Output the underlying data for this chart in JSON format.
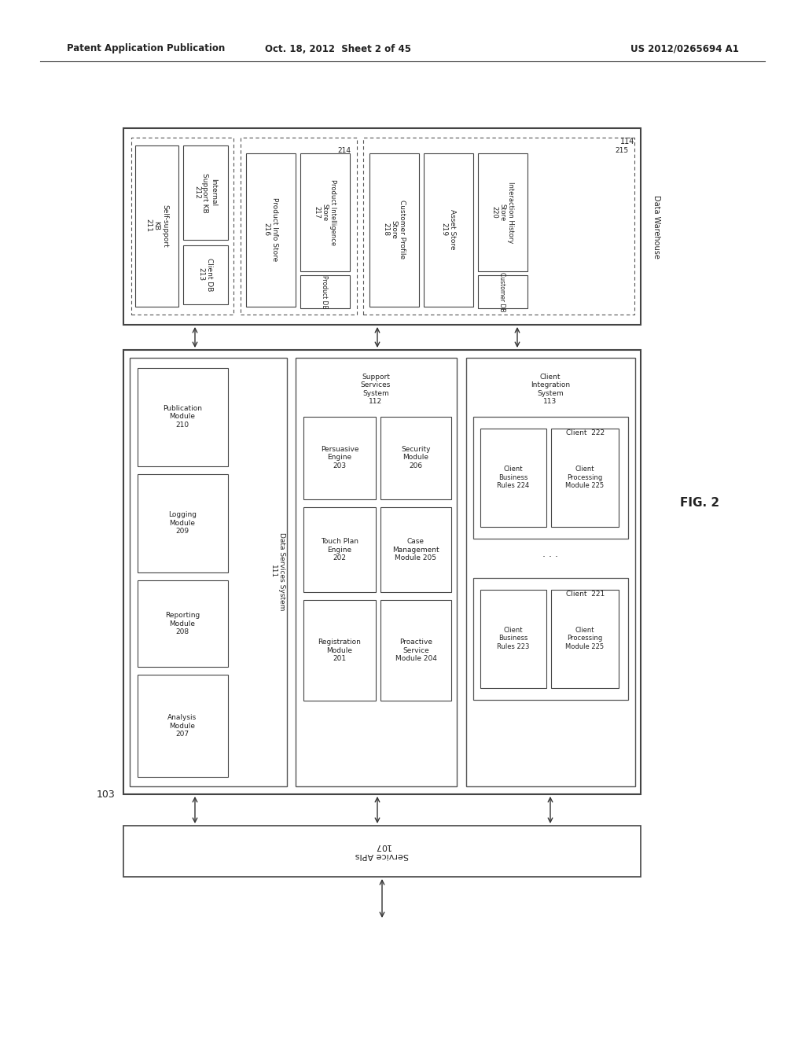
{
  "header_left": "Patent Application Publication",
  "header_mid": "Oct. 18, 2012  Sheet 2 of 45",
  "header_right": "US 2012/0265694 A1",
  "fig_label": "FIG. 2",
  "bg_color": "#ffffff",
  "text_color": "#222222"
}
